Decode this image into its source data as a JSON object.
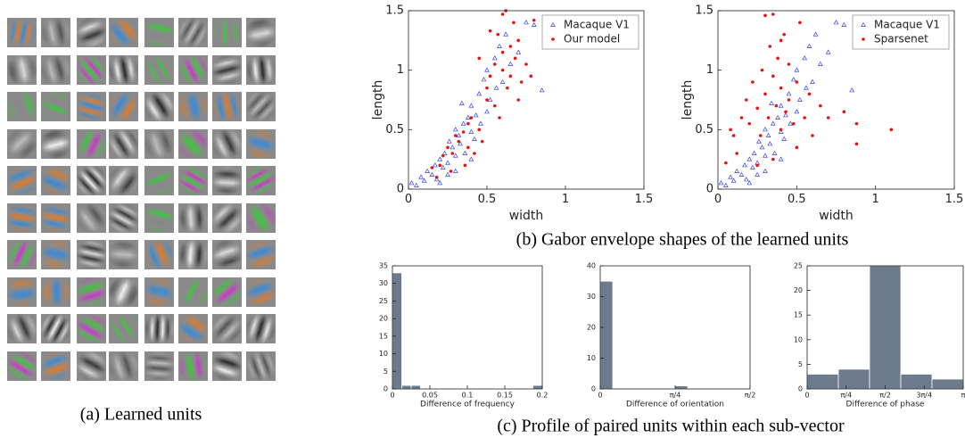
{
  "captions": {
    "a": "(a) Learned units",
    "b": "(b) Gabor envelope shapes of the learned units",
    "c": "(c) Profile of paired units within each sub-vector"
  },
  "chart_data": [
    {
      "type": "scatter",
      "xlabel": "width",
      "ylabel": "length",
      "xlim": [
        0,
        1.5
      ],
      "ylim": [
        0,
        1.5
      ],
      "xticks": [
        0,
        0.5,
        1,
        1.5
      ],
      "yticks": [
        0,
        0.5,
        1,
        1.5
      ],
      "legend": "upper right",
      "series": [
        {
          "name": "Macaque V1",
          "color": "#3344ee",
          "marker": "triangle",
          "x": [
            0.02,
            0.05,
            0.08,
            0.1,
            0.12,
            0.15,
            0.17,
            0.18,
            0.2,
            0.22,
            0.23,
            0.25,
            0.26,
            0.28,
            0.3,
            0.3,
            0.32,
            0.33,
            0.35,
            0.36,
            0.38,
            0.4,
            0.4,
            0.42,
            0.43,
            0.45,
            0.46,
            0.48,
            0.5,
            0.5,
            0.52,
            0.55,
            0.56,
            0.58,
            0.6,
            0.62,
            0.65,
            0.7,
            0.75,
            0.8,
            0.85,
            0.2,
            0.25,
            0.3,
            0.4,
            0.34
          ],
          "y": [
            0.05,
            0.03,
            0.1,
            0.07,
            0.15,
            0.12,
            0.2,
            0.08,
            0.25,
            0.18,
            0.3,
            0.22,
            0.4,
            0.35,
            0.28,
            0.5,
            0.45,
            0.38,
            0.55,
            0.3,
            0.6,
            0.48,
            0.7,
            0.42,
            0.62,
            0.8,
            0.55,
            0.92,
            0.65,
            1.0,
            0.75,
            1.1,
            0.85,
            1.2,
            0.9,
            1.3,
            1.05,
            1.15,
            1.4,
            1.38,
            0.83,
            0.05,
            0.12,
            0.15,
            0.25,
            0.72
          ]
        },
        {
          "name": "Our model",
          "color": "#ee1111",
          "marker": "dot",
          "x": [
            0.15,
            0.18,
            0.2,
            0.22,
            0.25,
            0.27,
            0.28,
            0.3,
            0.32,
            0.35,
            0.36,
            0.38,
            0.4,
            0.42,
            0.45,
            0.47,
            0.5,
            0.5,
            0.52,
            0.55,
            0.55,
            0.57,
            0.58,
            0.6,
            0.6,
            0.62,
            0.63,
            0.65,
            0.65,
            0.67,
            0.68,
            0.7,
            0.7,
            0.72,
            0.75,
            0.78,
            0.8,
            1.1,
            0.45,
            0.52,
            0.6,
            0.38
          ],
          "y": [
            0.18,
            0.1,
            0.2,
            0.28,
            0.35,
            0.15,
            0.3,
            0.45,
            0.4,
            0.48,
            0.2,
            0.55,
            0.6,
            0.3,
            0.5,
            0.4,
            0.75,
            0.85,
            0.95,
            1.05,
            0.7,
            1.3,
            0.6,
            1.15,
            1.0,
            1.5,
            0.85,
            1.2,
            0.95,
            1.4,
            1.1,
            0.75,
            1.25,
            0.9,
            1.05,
            0.95,
            1.42,
            1.22,
            1.1,
            1.33,
            1.47,
            0.35
          ]
        }
      ]
    },
    {
      "type": "scatter",
      "xlabel": "width",
      "ylabel": "length",
      "xlim": [
        0,
        1.5
      ],
      "ylim": [
        0,
        1.5
      ],
      "xticks": [
        0,
        0.5,
        1,
        1.5
      ],
      "yticks": [
        0,
        0.5,
        1,
        1.5
      ],
      "legend": "upper right",
      "series": [
        {
          "name": "Macaque V1",
          "color": "#3344ee",
          "marker": "triangle",
          "x": [
            0.02,
            0.05,
            0.08,
            0.1,
            0.12,
            0.15,
            0.17,
            0.18,
            0.2,
            0.22,
            0.23,
            0.25,
            0.26,
            0.28,
            0.3,
            0.3,
            0.32,
            0.33,
            0.35,
            0.36,
            0.38,
            0.4,
            0.4,
            0.42,
            0.43,
            0.45,
            0.46,
            0.48,
            0.5,
            0.5,
            0.52,
            0.55,
            0.56,
            0.58,
            0.6,
            0.62,
            0.65,
            0.7,
            0.75,
            0.8,
            0.85,
            0.2,
            0.25,
            0.3,
            0.4,
            0.34
          ],
          "y": [
            0.05,
            0.03,
            0.1,
            0.07,
            0.15,
            0.12,
            0.2,
            0.08,
            0.25,
            0.18,
            0.3,
            0.22,
            0.4,
            0.35,
            0.28,
            0.5,
            0.45,
            0.38,
            0.55,
            0.3,
            0.6,
            0.48,
            0.7,
            0.42,
            0.62,
            0.8,
            0.55,
            0.92,
            0.65,
            1.0,
            0.75,
            1.1,
            0.85,
            1.2,
            0.9,
            1.3,
            1.05,
            1.15,
            1.4,
            1.38,
            0.83,
            0.05,
            0.12,
            0.15,
            0.25,
            0.72
          ]
        },
        {
          "name": "Sparsenet",
          "color": "#ee1111",
          "marker": "dot",
          "x": [
            0.05,
            0.08,
            0.1,
            0.12,
            0.15,
            0.18,
            0.2,
            0.22,
            0.25,
            0.27,
            0.28,
            0.3,
            0.3,
            0.32,
            0.33,
            0.35,
            0.35,
            0.37,
            0.38,
            0.4,
            0.4,
            0.42,
            0.43,
            0.45,
            0.45,
            0.48,
            0.5,
            0.5,
            0.52,
            0.55,
            0.58,
            0.6,
            0.65,
            0.7,
            0.8,
            0.88,
            0.88,
            1.1,
            0.25,
            0.35,
            0.4
          ],
          "y": [
            0.22,
            0.5,
            0.45,
            0.3,
            0.6,
            0.75,
            0.55,
            0.9,
            0.68,
            0.45,
            1.0,
            0.8,
            1.46,
            0.6,
            1.2,
            0.95,
            1.47,
            0.7,
            1.1,
            0.85,
            0.5,
            1.3,
            0.65,
            0.75,
            1.05,
            0.55,
            0.9,
            0.35,
            1.4,
            0.6,
            0.8,
            0.45,
            0.7,
            0.6,
            0.65,
            0.55,
            0.38,
            0.5,
            0.2,
            0.25,
            1.25
          ]
        }
      ]
    },
    {
      "type": "histogram",
      "xlabel": "Difference of frequency",
      "color": "#6c7a8b",
      "bins": [
        0,
        0.0125,
        0.025,
        0.0375,
        0.05,
        0.0625,
        0.075,
        0.0875,
        0.1,
        0.1125,
        0.125,
        0.1375,
        0.15,
        0.1625,
        0.175,
        0.1875,
        0.2
      ],
      "values": [
        33,
        1,
        1,
        0,
        0,
        0,
        0,
        0,
        0,
        0,
        0,
        0,
        0,
        0,
        0,
        1
      ],
      "xlim": [
        0,
        0.2
      ],
      "ylim": [
        0,
        35
      ],
      "xticks": [
        0,
        0.05,
        0.1,
        0.15,
        0.2
      ],
      "yticks": [
        0,
        5,
        10,
        15,
        20,
        25,
        30,
        35
      ]
    },
    {
      "type": "histogram",
      "xlabel": "Difference of orientation",
      "color": "#6c7a8b",
      "bins": [
        0,
        0.1309,
        0.2618,
        0.3927,
        0.5236,
        0.6545,
        0.7854,
        0.9163,
        1.0472,
        1.1781,
        1.309,
        1.4399,
        1.5708
      ],
      "values": [
        35,
        0,
        0,
        0,
        0,
        0,
        1,
        0,
        0,
        0,
        0,
        0
      ],
      "xlim": [
        0,
        1.5708
      ],
      "ylim": [
        0,
        40
      ],
      "xticks": [
        0,
        {
          "value": 0.7854,
          "label": "π/4"
        },
        {
          "value": 1.5708,
          "label": "π/2"
        }
      ],
      "yticks": [
        0,
        10,
        20,
        30,
        40
      ]
    },
    {
      "type": "histogram",
      "xlabel": "Difference of phase",
      "color": "#6c7a8b",
      "bins": [
        0,
        0.6283,
        1.2566,
        1.885,
        2.5133,
        3.1416
      ],
      "values": [
        3,
        4,
        25,
        3,
        2
      ],
      "xlim": [
        0,
        3.1416
      ],
      "ylim": [
        0,
        25
      ],
      "xticks": [
        0,
        {
          "value": 0.7854,
          "label": "π/4"
        },
        {
          "value": 1.5708,
          "label": "π/2"
        },
        {
          "value": 2.3562,
          "label": "3π/4"
        },
        {
          "value": 3.1416,
          "label": "π"
        }
      ],
      "yticks": [
        0,
        5,
        10,
        15,
        20,
        25
      ]
    }
  ]
}
